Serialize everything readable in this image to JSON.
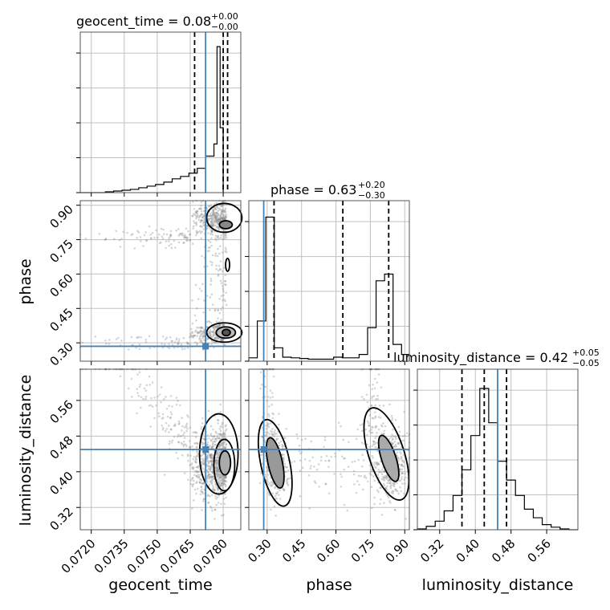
{
  "chart_data": {
    "type": "corner",
    "colors": {
      "truth": "#4682b4",
      "hist": "#000000",
      "quantile": "#000000",
      "grid": "#c0c0c0",
      "samples": "#8a8a8a"
    },
    "parameters": [
      {
        "name": "geocent_time",
        "label": "geocent_time",
        "range": [
          0.0715,
          0.0788
        ],
        "ticks": [
          "0.0720",
          "0.0735",
          "0.0750",
          "0.0765",
          "0.0780"
        ],
        "tick_values": [
          0.072,
          0.0735,
          0.075,
          0.0765,
          0.078
        ],
        "truth": 0.0772,
        "title_main": "geocent_time = 0.08",
        "title_plus": "+0.00",
        "title_minus": "−0.00",
        "quantiles": [
          0.0767,
          0.078,
          0.0782
        ]
      },
      {
        "name": "phase",
        "label": "phase",
        "range": [
          0.22,
          0.92
        ],
        "ticks": [
          "0.30",
          "0.45",
          "0.60",
          "0.75",
          "0.90"
        ],
        "tick_values": [
          0.3,
          0.45,
          0.6,
          0.75,
          0.9
        ],
        "truth": 0.285,
        "title_main": "phase = 0.63",
        "title_plus": "+0.20",
        "title_minus": "−0.30",
        "quantiles": [
          0.33,
          0.63,
          0.83
        ]
      },
      {
        "name": "luminosity_distance",
        "label": "luminosity_distance",
        "range": [
          0.27,
          0.63
        ],
        "ticks": [
          "0.32",
          "0.40",
          "0.48",
          "0.56"
        ],
        "tick_values": [
          0.32,
          0.4,
          0.48,
          0.56
        ],
        "truth": 0.45,
        "title_main": "luminosity_distance = 0.42",
        "title_plus": "+0.05",
        "title_minus": "−0.05",
        "quantiles": [
          0.37,
          0.42,
          0.47
        ]
      }
    ],
    "histograms": [
      {
        "param": "geocent_time",
        "edges": [
          0.0715,
          0.07188,
          0.07226,
          0.07264,
          0.07302,
          0.0734,
          0.07378,
          0.07416,
          0.07454,
          0.07492,
          0.0753,
          0.07568,
          0.07606,
          0.07644,
          0.07682,
          0.0772,
          0.07758,
          0.07772,
          0.07786,
          0.078
        ],
        "counts": [
          0,
          0,
          0,
          1,
          2,
          3,
          4,
          6,
          8,
          10,
          13,
          17,
          20,
          24,
          30,
          45,
          60,
          180,
          80
        ],
        "ymax": 190
      },
      {
        "param": "phase",
        "edges": [
          0.22,
          0.257,
          0.294,
          0.331,
          0.368,
          0.405,
          0.442,
          0.479,
          0.516,
          0.553,
          0.59,
          0.627,
          0.664,
          0.701,
          0.738,
          0.775,
          0.812,
          0.849,
          0.886,
          0.92
        ],
        "counts": [
          5,
          60,
          215,
          20,
          6,
          5,
          4,
          3,
          3,
          3,
          6,
          5,
          5,
          10,
          50,
          120,
          130,
          25,
          10
        ],
        "ymax": 230
      },
      {
        "param": "luminosity_distance",
        "edges": [
          0.27,
          0.29,
          0.31,
          0.33,
          0.35,
          0.37,
          0.39,
          0.41,
          0.43,
          0.45,
          0.47,
          0.49,
          0.51,
          0.53,
          0.55,
          0.57,
          0.59,
          0.61,
          0.63
        ],
        "counts": [
          1,
          4,
          10,
          22,
          40,
          70,
          110,
          165,
          125,
          80,
          58,
          40,
          24,
          14,
          6,
          3,
          1,
          0
        ],
        "ymax": 180
      }
    ],
    "scatter_pairs": [
      {
        "x": "geocent_time",
        "y": "phase"
      },
      {
        "x": "geocent_time",
        "y": "luminosity_distance"
      },
      {
        "x": "phase",
        "y": "luminosity_distance"
      }
    ],
    "truth_point": {
      "geocent_time": 0.0772,
      "phase": 0.285,
      "luminosity_distance": 0.45
    }
  }
}
